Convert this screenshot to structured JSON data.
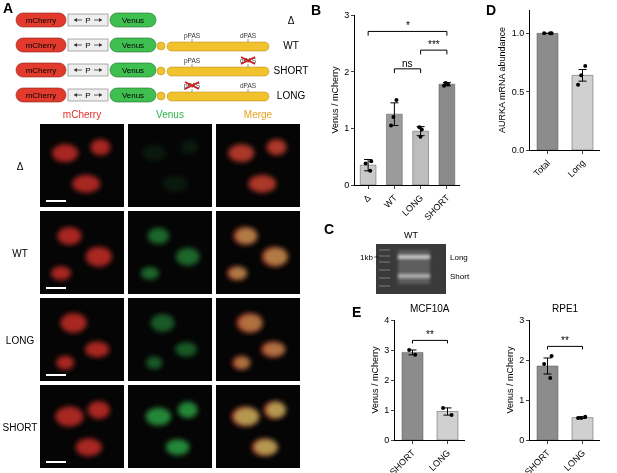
{
  "chart_data": [
    {
      "panel": "B",
      "type": "bar",
      "categories": [
        "Δ",
        "WT",
        "LONG",
        "SHORT"
      ],
      "values": [
        0.35,
        1.25,
        0.95,
        1.78
      ],
      "errors": [
        0.1,
        0.2,
        0.08,
        0.03
      ],
      "points": [
        [
          0.42,
          0.25,
          0.38
        ],
        [
          1.5,
          1.2,
          1.05
        ],
        [
          1.02,
          0.85,
          0.98
        ],
        [
          1.75,
          1.78,
          1.8
        ]
      ],
      "colors": [
        "#c9c9c9",
        "#9b9b9b",
        "#bdbdbd",
        "#8a8a8a"
      ],
      "ylabel": "Venus / mCherry",
      "ylim": [
        0,
        3
      ],
      "yticks": [
        0,
        1,
        2,
        3
      ],
      "grid": false,
      "significance": [
        {
          "pair": [
            "WT",
            "LONG"
          ],
          "label": "ns"
        },
        {
          "pair": [
            "LONG",
            "SHORT"
          ],
          "label": "***"
        },
        {
          "pair": [
            "Δ",
            "SHORT"
          ],
          "label": "*"
        }
      ]
    },
    {
      "panel": "D",
      "type": "bar",
      "categories": [
        "Total",
        "Long"
      ],
      "values": [
        1.0,
        0.64
      ],
      "errors": [
        0,
        0.05
      ],
      "points": [
        [
          1,
          1,
          1
        ],
        [
          0.72,
          0.56,
          0.64
        ]
      ],
      "colors": [
        "#8c8c8c",
        "#d0d0d0"
      ],
      "ylabel": "AURKA mRNA abundance",
      "ylim": [
        0,
        1.2
      ],
      "yticks": [
        {
          "value": 0,
          "label": "0.0"
        },
        {
          "value": 0.5,
          "label": "0.5"
        },
        {
          "value": 1,
          "label": "1.0"
        }
      ],
      "grid": false
    },
    {
      "panel": "E",
      "title": "MCF10A",
      "type": "bar",
      "categories": [
        "SHORT",
        "LONG"
      ],
      "values": [
        2.92,
        0.95
      ],
      "errors": [
        0.08,
        0.12
      ],
      "points": [
        [
          3.0,
          2.84
        ],
        [
          1.07,
          0.83
        ]
      ],
      "colors": [
        "#8c8c8c",
        "#d0d0d0"
      ],
      "ylabel": "Venus / mCherry",
      "ylim": [
        0,
        4
      ],
      "yticks": [
        0,
        1,
        2,
        3,
        4
      ],
      "grid": false,
      "significance": [
        {
          "pair": [
            "SHORT",
            "LONG"
          ],
          "label": "**"
        }
      ]
    },
    {
      "title": "RPE1",
      "type": "bar",
      "categories": [
        "SHORT",
        "LONG"
      ],
      "values": [
        1.85,
        0.56
      ],
      "errors": [
        0.2,
        0.02
      ],
      "points": [
        [
          2.1,
          1.9,
          1.55
        ],
        [
          0.55,
          0.55,
          0.58
        ]
      ],
      "colors": [
        "#8c8c8c",
        "#d0d0d0"
      ],
      "ylabel": "Venus / mCherry",
      "ylim": [
        0,
        3
      ],
      "yticks": [
        0,
        1,
        2,
        3
      ],
      "grid": false,
      "significance": [
        {
          "pair": [
            "SHORT",
            "LONG"
          ],
          "label": "**"
        }
      ]
    }
  ],
  "panel_a": {
    "panel": "A",
    "elements": {
      "left": "mCherry",
      "promoter": "P",
      "right": "Venus"
    },
    "constructs": [
      {
        "label": "Δ",
        "pas": []
      },
      {
        "label": "WT",
        "pas": [
          {
            "text": "pPAS",
            "mutated": false
          },
          {
            "text": "dPAS",
            "mutated": false
          }
        ]
      },
      {
        "label": "SHORT",
        "pas": [
          {
            "text": "pPAS",
            "mutated": false
          },
          {
            "text": "dPAS",
            "mutated": true
          }
        ]
      },
      {
        "label": "LONG",
        "pas": [
          {
            "text": "pPAS",
            "mutated": true
          },
          {
            "text": "dPAS",
            "mutated": false
          }
        ]
      }
    ],
    "channels": [
      {
        "name": "mCherry",
        "color": "#e0312b"
      },
      {
        "name": "Venus",
        "color": "#2fb34a"
      },
      {
        "name": "Merge",
        "color": "#e8a020"
      }
    ],
    "rows": [
      "Δ",
      "WT",
      "LONG",
      "SHORT"
    ]
  },
  "panel_c": {
    "panel": "C",
    "title": "WT",
    "marker": "1kb",
    "bands": [
      "Long",
      "Short"
    ]
  }
}
